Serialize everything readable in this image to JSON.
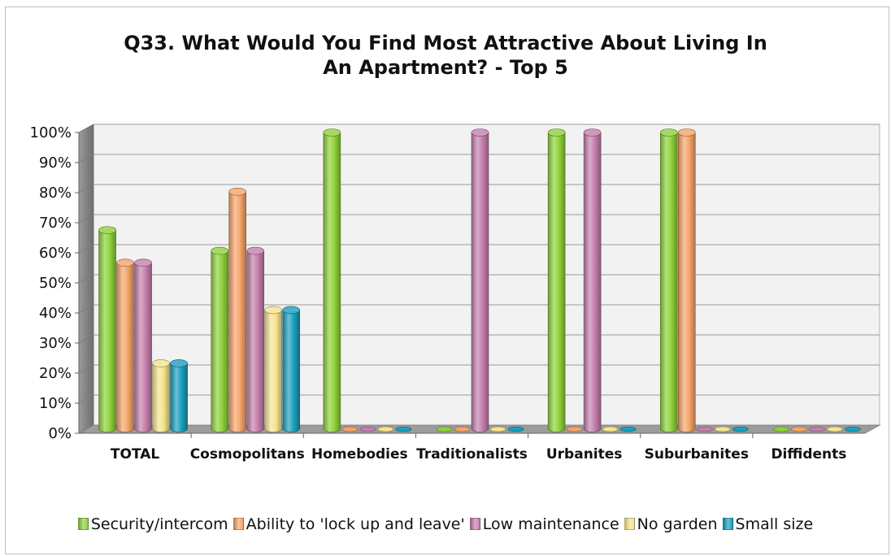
{
  "chart_data": {
    "type": "bar",
    "title_line1": "Q33. What Would You Find Most Attractive About Living In",
    "title_line2": "An Apartment? - Top 5",
    "categories": [
      "TOTAL",
      "Cosmopolitans",
      "Homebodies",
      "Traditionalists",
      "Urbanites",
      "Suburbanites",
      "Diffidents"
    ],
    "series": [
      {
        "name": "Security/intercom",
        "color": "#8fd13b",
        "values": [
          67,
          60,
          100,
          0,
          100,
          100,
          0
        ]
      },
      {
        "name": "Ability to 'lock up and leave'",
        "color": "#f5a46a",
        "values": [
          56,
          80,
          0,
          0,
          0,
          100,
          0
        ]
      },
      {
        "name": "Low maintenance",
        "color": "#c47fac",
        "values": [
          56,
          60,
          0,
          100,
          100,
          0,
          0
        ]
      },
      {
        "name": "No garden",
        "color": "#f5e48e",
        "values": [
          22,
          40,
          0,
          0,
          0,
          0,
          0
        ]
      },
      {
        "name": "Small size",
        "color": "#1a9fbd",
        "values": [
          22,
          40,
          0,
          0,
          0,
          0,
          0
        ]
      }
    ],
    "y_ticks": [
      "0%",
      "10%",
      "20%",
      "30%",
      "40%",
      "50%",
      "60%",
      "70%",
      "80%",
      "90%",
      "100%"
    ],
    "ylim": [
      0,
      100
    ],
    "grid": true,
    "legend_position": "bottom",
    "style": "3d-cylinder"
  }
}
